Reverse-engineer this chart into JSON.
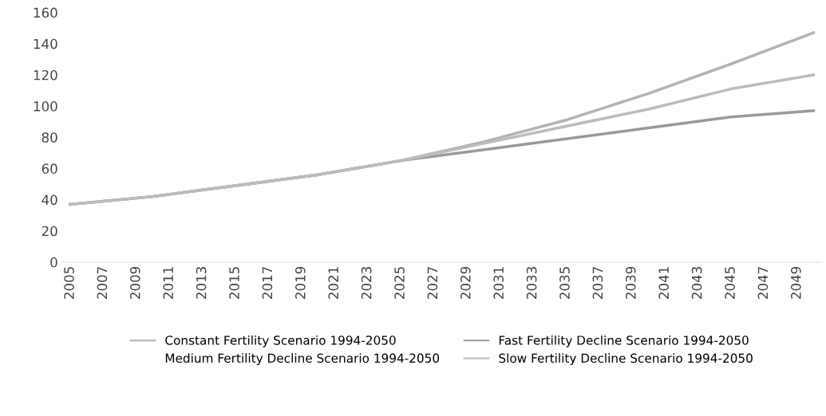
{
  "chart_data": {
    "type": "line",
    "x": [
      2005,
      2010,
      2015,
      2020,
      2025,
      2030,
      2035,
      2040,
      2045,
      2050
    ],
    "series": [
      {
        "name": "Constant Fertility Scenario 1994-2050",
        "color": "#b4b4b4",
        "values": [
          37,
          42,
          49,
          56,
          65,
          77,
          91,
          108,
          127,
          147
        ]
      },
      {
        "name": "Fast Fertility Decline Scenario 1994-2050",
        "color": "#9a9a9a",
        "values": [
          37,
          42,
          49,
          56,
          65,
          72,
          79,
          86,
          93,
          97
        ]
      },
      {
        "name": "Medium Fertility Decline Scenario 1994-2050",
        "values": [
          null,
          null,
          null,
          null,
          null,
          null,
          null,
          null,
          null,
          null
        ]
      },
      {
        "name": "Slow Fertility Decline Scenario 1994-2050",
        "color": "#bcbcbc",
        "values": [
          37,
          42,
          49,
          56,
          65,
          76,
          87,
          98,
          111,
          120
        ]
      }
    ],
    "xlim": [
      2004.5,
      2050.5
    ],
    "xticks": [
      2005,
      2007,
      2009,
      2011,
      2013,
      2015,
      2017,
      2019,
      2021,
      2023,
      2025,
      2027,
      2029,
      2031,
      2033,
      2035,
      2037,
      2039,
      2041,
      2043,
      2045,
      2047,
      2049
    ],
    "ylim": [
      0,
      160
    ],
    "yticks": [
      0,
      20,
      40,
      60,
      80,
      100,
      120,
      140,
      160
    ],
    "legend": "bottom",
    "grid": false
  }
}
